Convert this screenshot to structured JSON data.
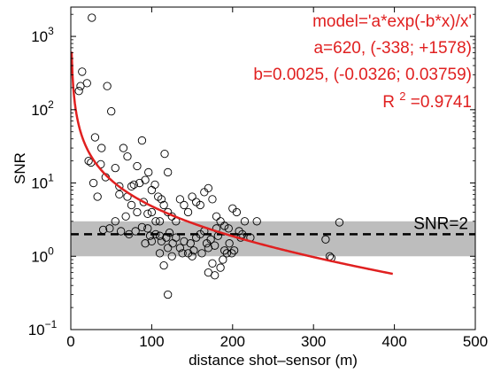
{
  "chart_data": {
    "type": "scatter",
    "xlabel": "distance shot–sensor (m)",
    "ylabel": "SNR",
    "xlim": [
      0,
      500
    ],
    "ylim_log10": [
      -1,
      3.4
    ],
    "y_scale": "log",
    "x_ticks": [
      0,
      100,
      200,
      300,
      400,
      500
    ],
    "x_tick_labels": [
      "0",
      "100",
      "200",
      "300",
      "400",
      "500"
    ],
    "y_ticks_exponents": [
      -1,
      0,
      1,
      2,
      3
    ],
    "y_tick_base": "10",
    "y_tick_exponent_labels": [
      "−1",
      "0",
      "1",
      "2",
      "3"
    ],
    "grid": false,
    "colors": {
      "data_points": "#000000",
      "fit_curve": "#e02020",
      "annotation_text": "#e02020",
      "noise_band": "#bdbdbd",
      "threshold_line": "#000000"
    },
    "annotations": {
      "model_line": "model='a*exp(-b*x)/x'",
      "a_line": "a=620, (-338; +1578)",
      "b_line": "b=0.0025, (-0.0326; 0.03759)",
      "r2_prefix": "R",
      "r2_superscript": "2",
      "r2_suffix": "=0.9741",
      "threshold_label": "SNR=2"
    },
    "threshold": {
      "y": 2
    },
    "band": {
      "y_low": 1.0,
      "y_high": 3.0
    },
    "fit": {
      "a": 620,
      "b": 0.0025,
      "x_start": 1,
      "x_end": 398
    },
    "series": [
      {
        "type": "scatter",
        "points": [
          [
            26,
            1800
          ],
          [
            14,
            330
          ],
          [
            10,
            180
          ],
          [
            12,
            210
          ],
          [
            20,
            230
          ],
          [
            45,
            210
          ],
          [
            50,
            95
          ],
          [
            30,
            42
          ],
          [
            38,
            30
          ],
          [
            22,
            20
          ],
          [
            28,
            10
          ],
          [
            33,
            6.5
          ],
          [
            25,
            19
          ],
          [
            37,
            18
          ],
          [
            43,
            12
          ],
          [
            55,
            16
          ],
          [
            60,
            9
          ],
          [
            65,
            30
          ],
          [
            70,
            23
          ],
          [
            75,
            9
          ],
          [
            78,
            9.5
          ],
          [
            82,
            17
          ],
          [
            85,
            10
          ],
          [
            88,
            38
          ],
          [
            92,
            11
          ],
          [
            96,
            14
          ],
          [
            100,
            8
          ],
          [
            104,
            9.5
          ],
          [
            108,
            6.5
          ],
          [
            112,
            6
          ],
          [
            116,
            25
          ],
          [
            120,
            14
          ],
          [
            60,
            7
          ],
          [
            70,
            6.5
          ],
          [
            75,
            5
          ],
          [
            82,
            4
          ],
          [
            90,
            5.5
          ],
          [
            95,
            3.8
          ],
          [
            100,
            4
          ],
          [
            105,
            3
          ],
          [
            110,
            3
          ],
          [
            115,
            5
          ],
          [
            120,
            4
          ],
          [
            125,
            3.5
          ],
          [
            130,
            3
          ],
          [
            135,
            6
          ],
          [
            140,
            5
          ],
          [
            145,
            4
          ],
          [
            150,
            6.5
          ],
          [
            155,
            5.5
          ],
          [
            160,
            5
          ],
          [
            165,
            7.5
          ],
          [
            170,
            8.5
          ],
          [
            175,
            6
          ],
          [
            180,
            3.5
          ],
          [
            185,
            3
          ],
          [
            190,
            2.6
          ],
          [
            195,
            2.4
          ],
          [
            200,
            4.5
          ],
          [
            205,
            4
          ],
          [
            208,
            2.2
          ],
          [
            212,
            2
          ],
          [
            215,
            3
          ],
          [
            222,
            1.8
          ],
          [
            230,
            3
          ],
          [
            40,
            2.3
          ],
          [
            48,
            2.4
          ],
          [
            55,
            3
          ],
          [
            62,
            2.2
          ],
          [
            68,
            3.5
          ],
          [
            72,
            2
          ],
          [
            80,
            2.2
          ],
          [
            88,
            2.5
          ],
          [
            95,
            2.4
          ],
          [
            100,
            1.6
          ],
          [
            105,
            2
          ],
          [
            110,
            1.9
          ],
          [
            112,
            1.6
          ],
          [
            118,
            1.8
          ],
          [
            122,
            2.1
          ],
          [
            126,
            1.5
          ],
          [
            130,
            1.8
          ],
          [
            135,
            1.3
          ],
          [
            140,
            1.6
          ],
          [
            145,
            1.1
          ],
          [
            148,
            1.5
          ],
          [
            152,
            1.2
          ],
          [
            155,
            1.8
          ],
          [
            160,
            2
          ],
          [
            162,
            1.1
          ],
          [
            165,
            2.2
          ],
          [
            168,
            1.5
          ],
          [
            170,
            1.3
          ],
          [
            173,
            1.7
          ],
          [
            175,
            0.8
          ],
          [
            178,
            1.4
          ],
          [
            180,
            2.4
          ],
          [
            182,
            1.9
          ],
          [
            185,
            0.7
          ],
          [
            188,
            0.9
          ],
          [
            190,
            1.2
          ],
          [
            193,
            1.1
          ],
          [
            196,
            1.5
          ],
          [
            199,
            1.1
          ],
          [
            202,
            1.2
          ],
          [
            210,
            1.8
          ],
          [
            110,
            1.1
          ],
          [
            115,
            0.75
          ],
          [
            120,
            1.3
          ],
          [
            125,
            1.0
          ],
          [
            138,
            1.1
          ],
          [
            150,
            1.0
          ],
          [
            170,
            0.6
          ],
          [
            178,
            0.55
          ],
          [
            120,
            0.3
          ],
          [
            92,
            1.5
          ],
          [
            98,
            1.9
          ],
          [
            315,
            1.7
          ],
          [
            320,
            1.0
          ],
          [
            322,
            0.95
          ],
          [
            332,
            2.9
          ]
        ]
      }
    ]
  }
}
